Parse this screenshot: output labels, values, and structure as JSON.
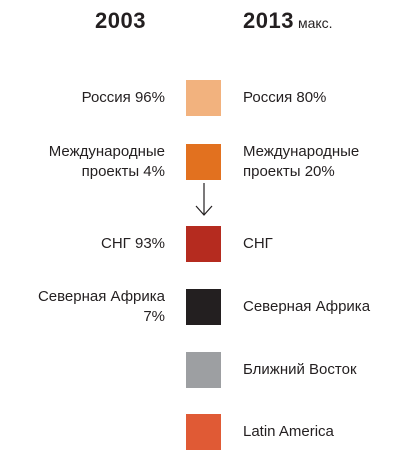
{
  "header": {
    "left": "2003",
    "right": "2013",
    "right_note": "макс."
  },
  "rows": [
    {
      "left": [
        "Россия 96%"
      ],
      "right": [
        "Россия 80%"
      ],
      "color": "#f2b27e"
    },
    {
      "left": [
        "Международные",
        "проекты 4%"
      ],
      "right": [
        "Международные",
        "проекты 20%"
      ],
      "color": "#e2711f"
    },
    {
      "left": [
        "СНГ 93%"
      ],
      "right": [
        "СНГ"
      ],
      "color": "#b52b1f"
    },
    {
      "left": [
        "Северная Африка",
        "7%"
      ],
      "right": [
        "Северная Африка"
      ],
      "color": "#231f20"
    },
    {
      "right": [
        "Ближний Восток"
      ],
      "color": "#9d9fa2"
    },
    {
      "right": [
        "Latin America"
      ],
      "color": "#e05a35"
    }
  ]
}
